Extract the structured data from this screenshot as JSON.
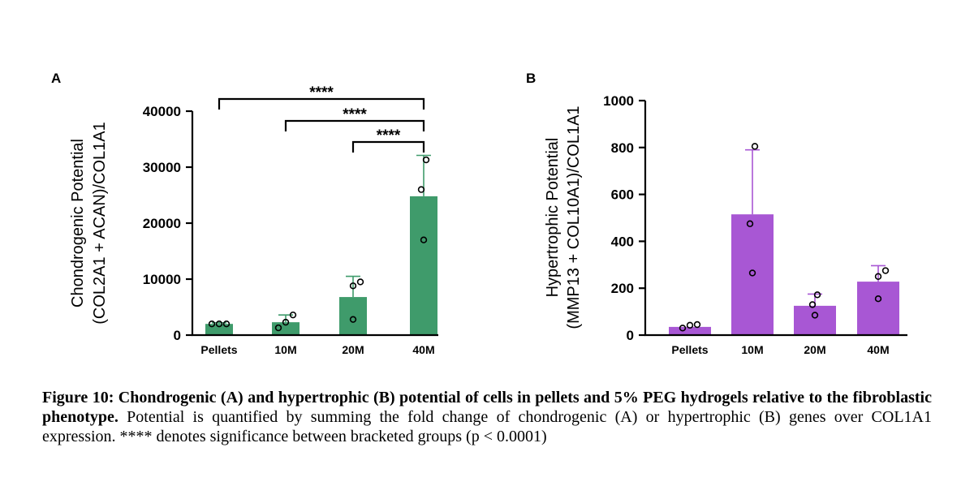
{
  "chart_data": [
    {
      "panel": "A",
      "type": "bar",
      "ylabel_line1": "Chondrogenic Potential",
      "ylabel_line2": "(COL2A1 + ACAN)/COL1A1",
      "ylim": [
        0,
        40000
      ],
      "yticks": [
        0,
        10000,
        20000,
        30000,
        40000
      ],
      "categories": [
        "Pellets",
        "10M",
        "20M",
        "40M"
      ],
      "values": [
        2000,
        2300,
        6800,
        24800
      ],
      "error": [
        200,
        1300,
        3700,
        7300
      ],
      "points": [
        [
          2000,
          2000,
          2000
        ],
        [
          1300,
          2300,
          3600
        ],
        [
          2800,
          8800,
          9500
        ],
        [
          17000,
          26000,
          31300
        ]
      ],
      "brackets": [
        {
          "from": "Pellets",
          "to": "40M",
          "label": "****"
        },
        {
          "from": "10M",
          "to": "40M",
          "label": "****"
        },
        {
          "from": "20M",
          "to": "40M",
          "label": "****"
        }
      ],
      "color": "#3f9b6b",
      "grid": false
    },
    {
      "panel": "B",
      "type": "bar",
      "ylabel_line1": "Hypertrophic Potential",
      "ylabel_line2": "(MMP13 + COL10A1)/COL1A1",
      "ylim": [
        0,
        1000
      ],
      "yticks": [
        0,
        200,
        400,
        600,
        800,
        1000
      ],
      "categories": [
        "Pellets",
        "10M",
        "20M",
        "40M"
      ],
      "values": [
        35,
        515,
        125,
        228
      ],
      "error": [
        0,
        275,
        50,
        68
      ],
      "points": [
        [
          30,
          42,
          45
        ],
        [
          265,
          475,
          805
        ],
        [
          85,
          130,
          172
        ],
        [
          155,
          250,
          275
        ]
      ],
      "color": "#a857d4",
      "grid": false
    }
  ],
  "caption": {
    "bold": "Figure 10: Chondrogenic (A) and hypertrophic (B) potential of cells in pellets and 5% PEG hydrogels relative to the fibroblastic phenotype.",
    "rest": " Potential is quantified by summing the fold change of chondrogenic (A) or hypertrophic (B) genes over COL1A1 expression. **** denotes significance between bracketed groups (p < 0.0001)"
  }
}
